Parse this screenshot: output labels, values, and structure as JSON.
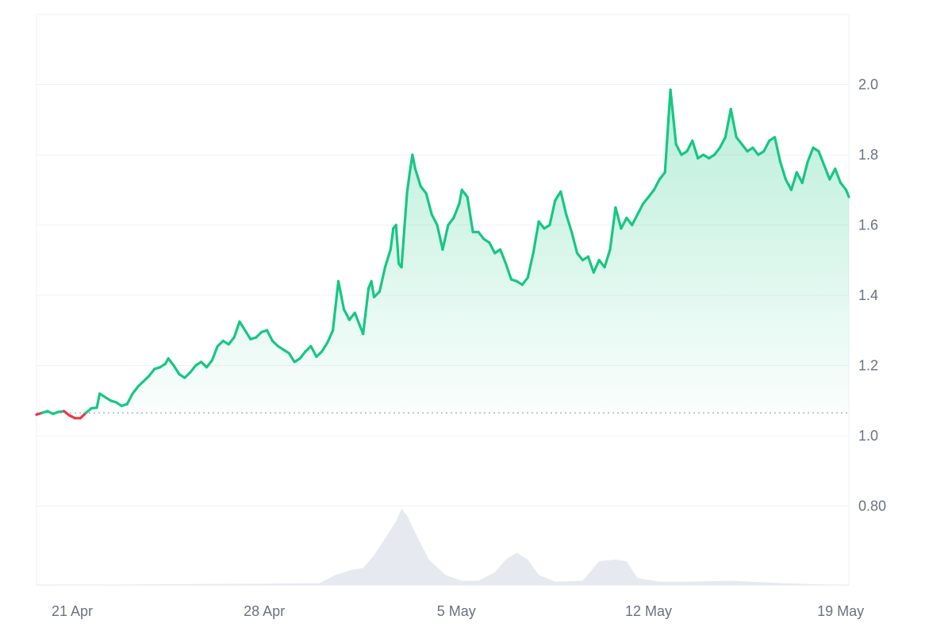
{
  "chart_data": {
    "type": "line",
    "y_ticks": [
      0.8,
      1.0,
      1.2,
      1.4,
      1.6,
      1.8,
      2.0
    ],
    "y_tick_labels": [
      "0.80",
      "1.0",
      "1.2",
      "1.4",
      "1.6",
      "1.8",
      "2.0"
    ],
    "x_ticks": [
      {
        "day": 21,
        "label": "21 Apr"
      },
      {
        "day": 28,
        "label": "28 Apr"
      },
      {
        "day": 35,
        "label": "5 May"
      },
      {
        "day": 42,
        "label": "12 May"
      },
      {
        "day": 49,
        "label": "19 May"
      }
    ],
    "ylim": [
      0.575,
      2.2
    ],
    "xlim": [
      19.7,
      49.3
    ],
    "baseline": 1.065,
    "colors": {
      "up": "#16c784",
      "down": "#ea3943",
      "grid": "#eff2f5",
      "volume": "#e6eaf0",
      "baseline": "#9aa0a6"
    },
    "series": [
      {
        "values": [
          [
            19.7,
            1.06
          ],
          [
            19.9,
            1.065
          ],
          [
            20.1,
            1.07
          ],
          [
            20.3,
            1.062
          ],
          [
            20.5,
            1.068
          ],
          [
            20.7,
            1.07
          ],
          [
            20.9,
            1.058
          ],
          [
            21.1,
            1.05
          ],
          [
            21.3,
            1.05
          ],
          [
            21.5,
            1.065
          ],
          [
            21.7,
            1.078
          ],
          [
            21.9,
            1.08
          ],
          [
            22.0,
            1.12
          ],
          [
            22.2,
            1.11
          ],
          [
            22.4,
            1.1
          ],
          [
            22.6,
            1.095
          ],
          [
            22.8,
            1.085
          ],
          [
            23.0,
            1.09
          ],
          [
            23.2,
            1.12
          ],
          [
            23.4,
            1.14
          ],
          [
            23.6,
            1.155
          ],
          [
            23.8,
            1.17
          ],
          [
            24.0,
            1.19
          ],
          [
            24.2,
            1.195
          ],
          [
            24.4,
            1.205
          ],
          [
            24.5,
            1.22
          ],
          [
            24.7,
            1.2
          ],
          [
            24.9,
            1.175
          ],
          [
            25.1,
            1.165
          ],
          [
            25.3,
            1.18
          ],
          [
            25.5,
            1.2
          ],
          [
            25.7,
            1.21
          ],
          [
            25.9,
            1.195
          ],
          [
            26.1,
            1.215
          ],
          [
            26.3,
            1.255
          ],
          [
            26.5,
            1.27
          ],
          [
            26.7,
            1.26
          ],
          [
            26.9,
            1.28
          ],
          [
            27.1,
            1.325
          ],
          [
            27.3,
            1.3
          ],
          [
            27.5,
            1.275
          ],
          [
            27.7,
            1.28
          ],
          [
            27.9,
            1.295
          ],
          [
            28.1,
            1.3
          ],
          [
            28.3,
            1.27
          ],
          [
            28.5,
            1.255
          ],
          [
            28.7,
            1.245
          ],
          [
            28.9,
            1.235
          ],
          [
            29.1,
            1.21
          ],
          [
            29.3,
            1.22
          ],
          [
            29.5,
            1.24
          ],
          [
            29.7,
            1.255
          ],
          [
            29.9,
            1.225
          ],
          [
            30.1,
            1.24
          ],
          [
            30.3,
            1.265
          ],
          [
            30.5,
            1.3
          ],
          [
            30.7,
            1.44
          ],
          [
            30.9,
            1.36
          ],
          [
            31.1,
            1.33
          ],
          [
            31.3,
            1.35
          ],
          [
            31.5,
            1.31
          ],
          [
            31.6,
            1.29
          ],
          [
            31.8,
            1.42
          ],
          [
            31.9,
            1.44
          ],
          [
            32.0,
            1.395
          ],
          [
            32.2,
            1.41
          ],
          [
            32.4,
            1.48
          ],
          [
            32.6,
            1.53
          ],
          [
            32.7,
            1.59
          ],
          [
            32.8,
            1.6
          ],
          [
            32.9,
            1.49
          ],
          [
            33.0,
            1.48
          ],
          [
            33.2,
            1.69
          ],
          [
            33.3,
            1.75
          ],
          [
            33.4,
            1.8
          ],
          [
            33.5,
            1.76
          ],
          [
            33.7,
            1.71
          ],
          [
            33.9,
            1.69
          ],
          [
            34.1,
            1.63
          ],
          [
            34.3,
            1.6
          ],
          [
            34.5,
            1.53
          ],
          [
            34.7,
            1.6
          ],
          [
            34.9,
            1.62
          ],
          [
            35.1,
            1.66
          ],
          [
            35.2,
            1.7
          ],
          [
            35.4,
            1.68
          ],
          [
            35.6,
            1.58
          ],
          [
            35.8,
            1.58
          ],
          [
            36.0,
            1.56
          ],
          [
            36.2,
            1.55
          ],
          [
            36.4,
            1.52
          ],
          [
            36.6,
            1.53
          ],
          [
            36.8,
            1.49
          ],
          [
            37.0,
            1.445
          ],
          [
            37.2,
            1.44
          ],
          [
            37.4,
            1.43
          ],
          [
            37.6,
            1.45
          ],
          [
            37.8,
            1.52
          ],
          [
            38.0,
            1.61
          ],
          [
            38.2,
            1.59
          ],
          [
            38.4,
            1.6
          ],
          [
            38.6,
            1.67
          ],
          [
            38.8,
            1.695
          ],
          [
            39.0,
            1.63
          ],
          [
            39.2,
            1.58
          ],
          [
            39.4,
            1.52
          ],
          [
            39.6,
            1.5
          ],
          [
            39.8,
            1.51
          ],
          [
            40.0,
            1.465
          ],
          [
            40.2,
            1.5
          ],
          [
            40.4,
            1.48
          ],
          [
            40.6,
            1.53
          ],
          [
            40.8,
            1.65
          ],
          [
            41.0,
            1.59
          ],
          [
            41.2,
            1.62
          ],
          [
            41.4,
            1.6
          ],
          [
            41.6,
            1.63
          ],
          [
            41.8,
            1.66
          ],
          [
            42.0,
            1.68
          ],
          [
            42.2,
            1.7
          ],
          [
            42.4,
            1.73
          ],
          [
            42.6,
            1.75
          ],
          [
            42.8,
            1.985
          ],
          [
            43.0,
            1.83
          ],
          [
            43.2,
            1.8
          ],
          [
            43.4,
            1.81
          ],
          [
            43.6,
            1.84
          ],
          [
            43.8,
            1.79
          ],
          [
            44.0,
            1.8
          ],
          [
            44.2,
            1.79
          ],
          [
            44.4,
            1.8
          ],
          [
            44.6,
            1.82
          ],
          [
            44.8,
            1.85
          ],
          [
            45.0,
            1.93
          ],
          [
            45.2,
            1.85
          ],
          [
            45.4,
            1.83
          ],
          [
            45.6,
            1.81
          ],
          [
            45.8,
            1.82
          ],
          [
            46.0,
            1.8
          ],
          [
            46.2,
            1.81
          ],
          [
            46.4,
            1.84
          ],
          [
            46.6,
            1.85
          ],
          [
            46.8,
            1.78
          ],
          [
            47.0,
            1.73
          ],
          [
            47.2,
            1.7
          ],
          [
            47.4,
            1.75
          ],
          [
            47.6,
            1.72
          ],
          [
            47.8,
            1.78
          ],
          [
            48.0,
            1.82
          ],
          [
            48.2,
            1.81
          ],
          [
            48.4,
            1.77
          ],
          [
            48.6,
            1.73
          ],
          [
            48.8,
            1.76
          ],
          [
            49.0,
            1.72
          ],
          [
            49.2,
            1.7
          ],
          [
            49.4,
            1.68
          ]
        ]
      }
    ],
    "volume": [
      [
        19.7,
        0
      ],
      [
        30.0,
        0.02
      ],
      [
        30.6,
        0.12
      ],
      [
        31.2,
        0.18
      ],
      [
        31.6,
        0.2
      ],
      [
        32.0,
        0.35
      ],
      [
        32.4,
        0.55
      ],
      [
        32.8,
        0.75
      ],
      [
        33.0,
        0.9
      ],
      [
        33.2,
        0.82
      ],
      [
        33.6,
        0.55
      ],
      [
        34.0,
        0.3
      ],
      [
        34.6,
        0.12
      ],
      [
        35.2,
        0.05
      ],
      [
        35.8,
        0.05
      ],
      [
        36.4,
        0.15
      ],
      [
        36.8,
        0.3
      ],
      [
        37.2,
        0.38
      ],
      [
        37.6,
        0.3
      ],
      [
        38.0,
        0.12
      ],
      [
        38.6,
        0.04
      ],
      [
        39.6,
        0.05
      ],
      [
        40.2,
        0.28
      ],
      [
        40.8,
        0.3
      ],
      [
        41.2,
        0.28
      ],
      [
        41.6,
        0.08
      ],
      [
        42.4,
        0.04
      ],
      [
        43.4,
        0.04
      ],
      [
        45.0,
        0.05
      ],
      [
        47.0,
        0.02
      ],
      [
        49.3,
        0
      ]
    ]
  }
}
